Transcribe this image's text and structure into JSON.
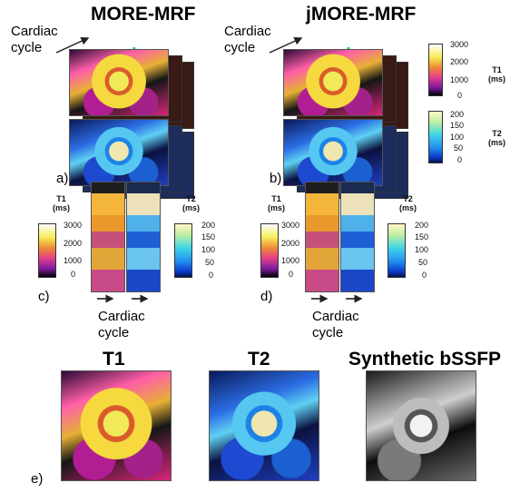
{
  "titles": {
    "more": "MORE-MRF",
    "jmore": "jMORE-MRF",
    "t1": "T1",
    "t2": "T2",
    "bssfp": "Synthetic bSSFP"
  },
  "labels": {
    "cardiac_line1": "Cardiac",
    "cardiac_line2": "cycle"
  },
  "panels": {
    "a": "a)",
    "b": "b)",
    "c": "c)",
    "d": "d)",
    "e": "e)"
  },
  "colorbars": {
    "t1_title": "T1",
    "t1_unit": "(ms)",
    "t2_title": "T2",
    "t2_unit": "(ms)",
    "t1_ticks": [
      "3000",
      "2000",
      "1000",
      "0"
    ],
    "t2_ticks": [
      "200",
      "150",
      "100",
      "50",
      "0"
    ]
  }
}
